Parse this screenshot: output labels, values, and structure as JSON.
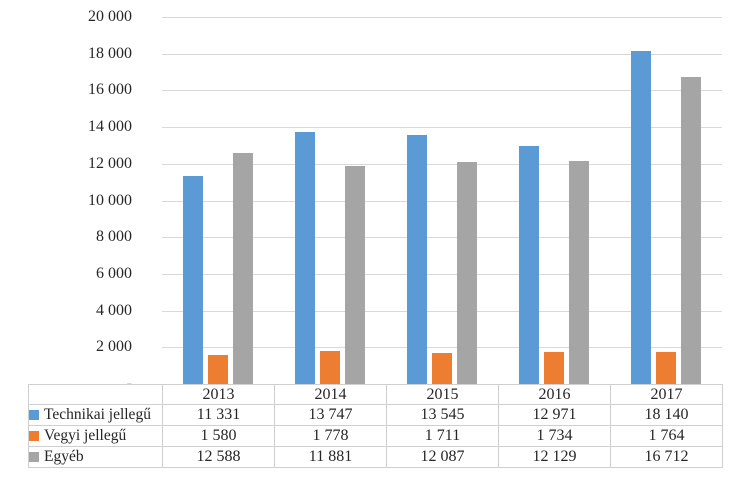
{
  "chart_data": {
    "type": "bar",
    "title": "",
    "xlabel": "",
    "ylabel": "",
    "categories": [
      "2013",
      "2014",
      "2015",
      "2016",
      "2017"
    ],
    "series": [
      {
        "name": "Technikai jellegű",
        "color": "#5B9BD5",
        "values": [
          11331,
          13747,
          13545,
          12971,
          18140
        ],
        "display_values": [
          "11 331",
          "13 747",
          "13 545",
          "12 971",
          "18 140"
        ]
      },
      {
        "name": "Vegyi jellegű",
        "color": "#ED7D31",
        "values": [
          1580,
          1778,
          1711,
          1734,
          1764
        ],
        "display_values": [
          "1 580",
          "1 778",
          "1 711",
          "1 734",
          "1 764"
        ]
      },
      {
        "name": "Egyéb",
        "color": "#A5A5A5",
        "values": [
          12588,
          11881,
          12087,
          12129,
          16712
        ],
        "display_values": [
          "12 588",
          "11 881",
          "12 087",
          "12 129",
          "16 712"
        ]
      }
    ],
    "y_axis": {
      "min": 0,
      "max": 20000,
      "step": 2000,
      "tick_labels": [
        "-",
        "2 000",
        "4 000",
        "6 000",
        "8 000",
        "10 000",
        "12 000",
        "14 000",
        "16 000",
        "18 000",
        "20 000"
      ]
    },
    "grid": true,
    "legend_position": "data-table-left-column",
    "colors": {
      "gridline": "#D9D9D9",
      "table_border": "#CFCFCF",
      "text": "#262626"
    }
  }
}
